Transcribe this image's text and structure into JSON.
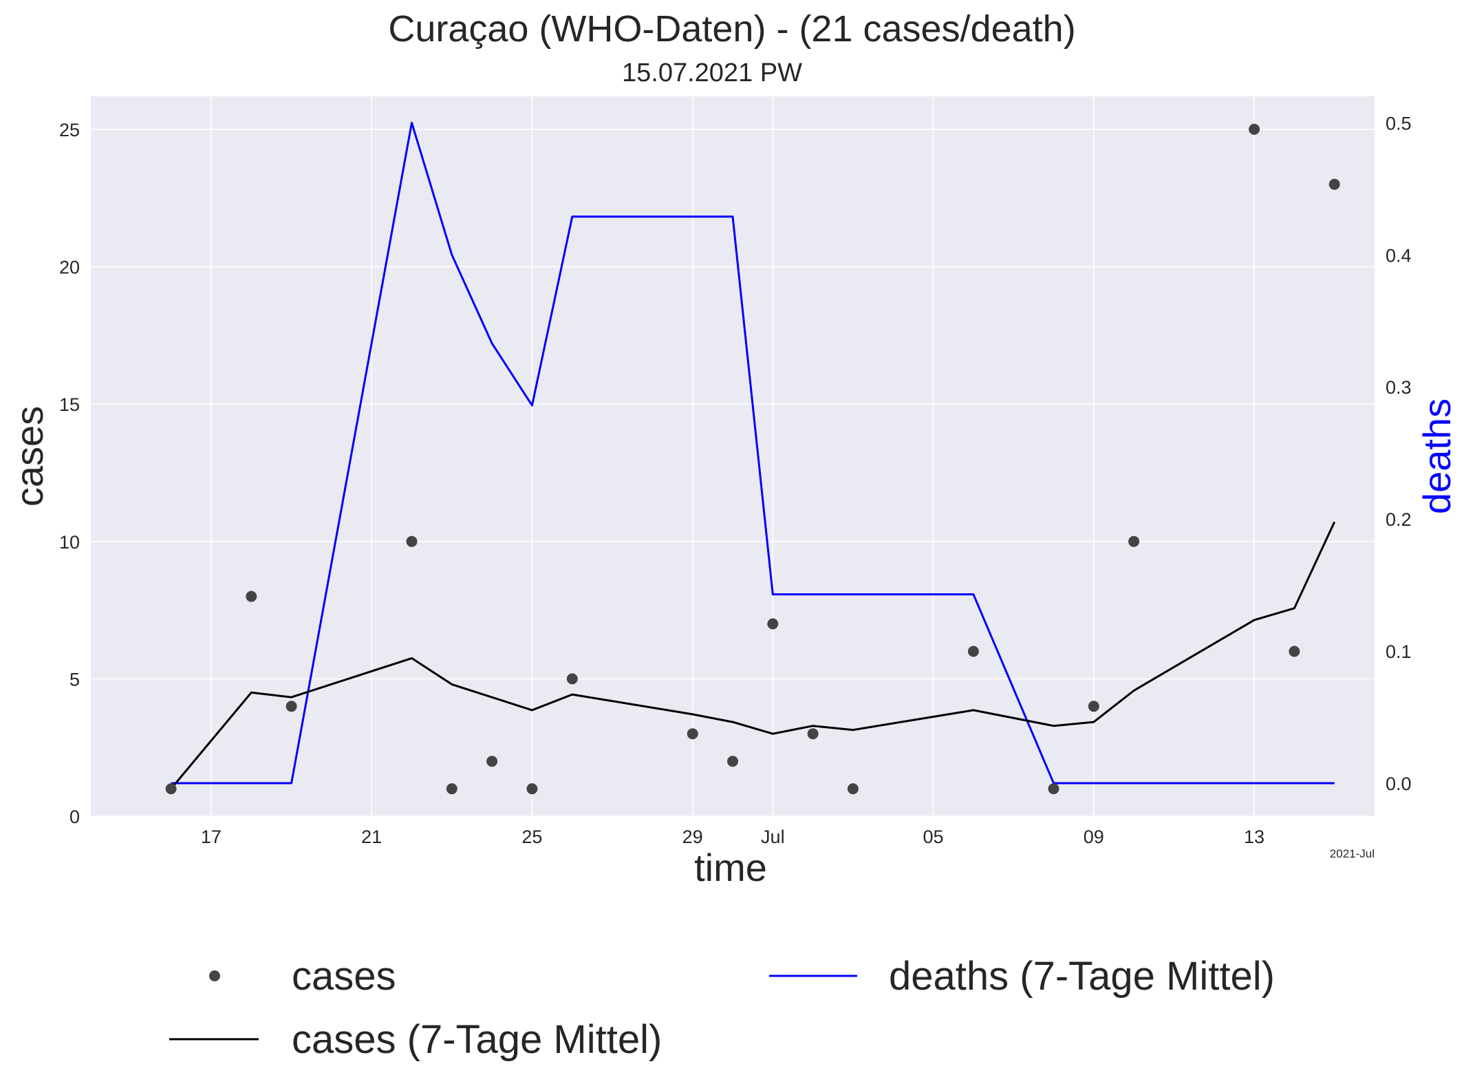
{
  "chart_data": {
    "type": "line",
    "title": "Curaçao (WHO-Daten) - (21 cases/death)",
    "subtitle": "15.07.2021 PW",
    "xlabel": "time",
    "ylabel_left": "cases",
    "ylabel_right": "deaths",
    "x_offset_label": "2021-Jul",
    "xlim": [
      "2021-06-14",
      "2021-07-16"
    ],
    "ylim_left": [
      0,
      26.2
    ],
    "ylim_right": [
      -0.025,
      0.52
    ],
    "x_ticks": [
      {
        "date": "2021-06-17",
        "label": "17"
      },
      {
        "date": "2021-06-21",
        "label": "21"
      },
      {
        "date": "2021-06-25",
        "label": "25"
      },
      {
        "date": "2021-06-29",
        "label": "29"
      },
      {
        "date": "2021-07-01",
        "label": "Jul"
      },
      {
        "date": "2021-07-05",
        "label": "05"
      },
      {
        "date": "2021-07-09",
        "label": "09"
      },
      {
        "date": "2021-07-13",
        "label": "13"
      }
    ],
    "y_ticks_left": [
      0,
      5,
      10,
      15,
      20,
      25
    ],
    "y_ticks_right": [
      "0.0",
      "0.1",
      "0.2",
      "0.3",
      "0.4",
      "0.5"
    ],
    "grid": true,
    "legend_placement": "bottom",
    "colors": {
      "background": "#eaeaf2",
      "grid": "#ffffff",
      "cases": "#444444",
      "cases_avg": "#000000",
      "deaths_avg": "#0000ff",
      "deaths_label": "#0000ff"
    },
    "series": [
      {
        "name": "cases",
        "kind": "scatter",
        "axis": "left",
        "points": [
          [
            "2021-06-16",
            1
          ],
          [
            "2021-06-18",
            8
          ],
          [
            "2021-06-19",
            4
          ],
          [
            "2021-06-22",
            10
          ],
          [
            "2021-06-23",
            1
          ],
          [
            "2021-06-24",
            2
          ],
          [
            "2021-06-25",
            1
          ],
          [
            "2021-06-26",
            5
          ],
          [
            "2021-06-29",
            3
          ],
          [
            "2021-06-30",
            2
          ],
          [
            "2021-07-01",
            7
          ],
          [
            "2021-07-02",
            3
          ],
          [
            "2021-07-03",
            1
          ],
          [
            "2021-07-06",
            6
          ],
          [
            "2021-07-08",
            1
          ],
          [
            "2021-07-09",
            4
          ],
          [
            "2021-07-10",
            10
          ],
          [
            "2021-07-13",
            25
          ],
          [
            "2021-07-14",
            6
          ],
          [
            "2021-07-15",
            23
          ]
        ]
      },
      {
        "name": "cases (7-Tage Mittel)",
        "kind": "line",
        "axis": "left",
        "points": [
          [
            "2021-06-16",
            1.0
          ],
          [
            "2021-06-18",
            4.5
          ],
          [
            "2021-06-19",
            4.33
          ],
          [
            "2021-06-22",
            5.75
          ],
          [
            "2021-06-23",
            4.8
          ],
          [
            "2021-06-25",
            3.86
          ],
          [
            "2021-06-26",
            4.43
          ],
          [
            "2021-06-29",
            3.71
          ],
          [
            "2021-06-30",
            3.43
          ],
          [
            "2021-07-01",
            3.0
          ],
          [
            "2021-07-02",
            3.29
          ],
          [
            "2021-07-03",
            3.14
          ],
          [
            "2021-07-06",
            3.86
          ],
          [
            "2021-07-08",
            3.29
          ],
          [
            "2021-07-09",
            3.43
          ],
          [
            "2021-07-10",
            4.57
          ],
          [
            "2021-07-13",
            7.14
          ],
          [
            "2021-07-14",
            7.57
          ],
          [
            "2021-07-15",
            10.71
          ]
        ]
      },
      {
        "name": "deaths (7-Tage Mittel)",
        "kind": "line",
        "axis": "right",
        "points": [
          [
            "2021-06-16",
            0.0
          ],
          [
            "2021-06-19",
            0.0
          ],
          [
            "2021-06-22",
            0.5
          ],
          [
            "2021-06-23",
            0.4
          ],
          [
            "2021-06-24",
            0.333
          ],
          [
            "2021-06-25",
            0.286
          ],
          [
            "2021-06-26",
            0.429
          ],
          [
            "2021-06-30",
            0.429
          ],
          [
            "2021-07-01",
            0.143
          ],
          [
            "2021-07-06",
            0.143
          ],
          [
            "2021-07-08",
            0.0
          ],
          [
            "2021-07-15",
            0.0
          ]
        ]
      }
    ]
  }
}
